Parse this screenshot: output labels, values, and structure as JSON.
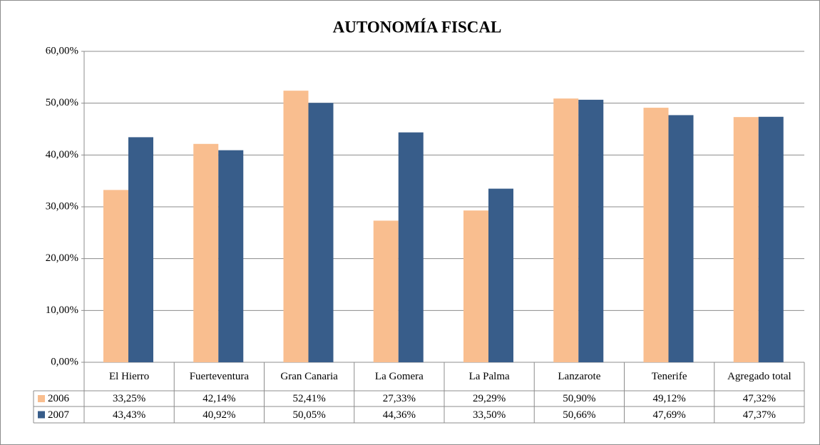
{
  "chart_data": {
    "type": "bar",
    "title": "AUTONOMÍA FISCAL",
    "categories": [
      "El Hierro",
      "Fuerteventura",
      "Gran Canaria",
      "La Gomera",
      "La Palma",
      "Lanzarote",
      "Tenerife",
      "Agregado total"
    ],
    "series": [
      {
        "name": "2006",
        "color": "#f9be8f",
        "values": [
          33.25,
          42.14,
          52.41,
          27.33,
          29.29,
          50.9,
          49.12,
          47.32
        ],
        "value_labels": [
          "33,25%",
          "42,14%",
          "52,41%",
          "27,33%",
          "29,29%",
          "50,90%",
          "49,12%",
          "47,32%"
        ]
      },
      {
        "name": "2007",
        "color": "#385d8a",
        "values": [
          43.43,
          40.92,
          50.05,
          44.36,
          33.5,
          50.66,
          47.69,
          47.37
        ],
        "value_labels": [
          "43,43%",
          "40,92%",
          "50,05%",
          "44,36%",
          "33,50%",
          "50,66%",
          "47,69%",
          "47,37%"
        ]
      }
    ],
    "ylim": [
      0,
      60
    ],
    "yticks": [
      {
        "value": 0,
        "label": "0,00%"
      },
      {
        "value": 10,
        "label": "10,00%"
      },
      {
        "value": 20,
        "label": "20,00%"
      },
      {
        "value": 30,
        "label": "30,00%"
      },
      {
        "value": 40,
        "label": "40,00%"
      },
      {
        "value": 50,
        "label": "50,00%"
      },
      {
        "value": 60,
        "label": "60,00%"
      }
    ],
    "grid": true
  }
}
